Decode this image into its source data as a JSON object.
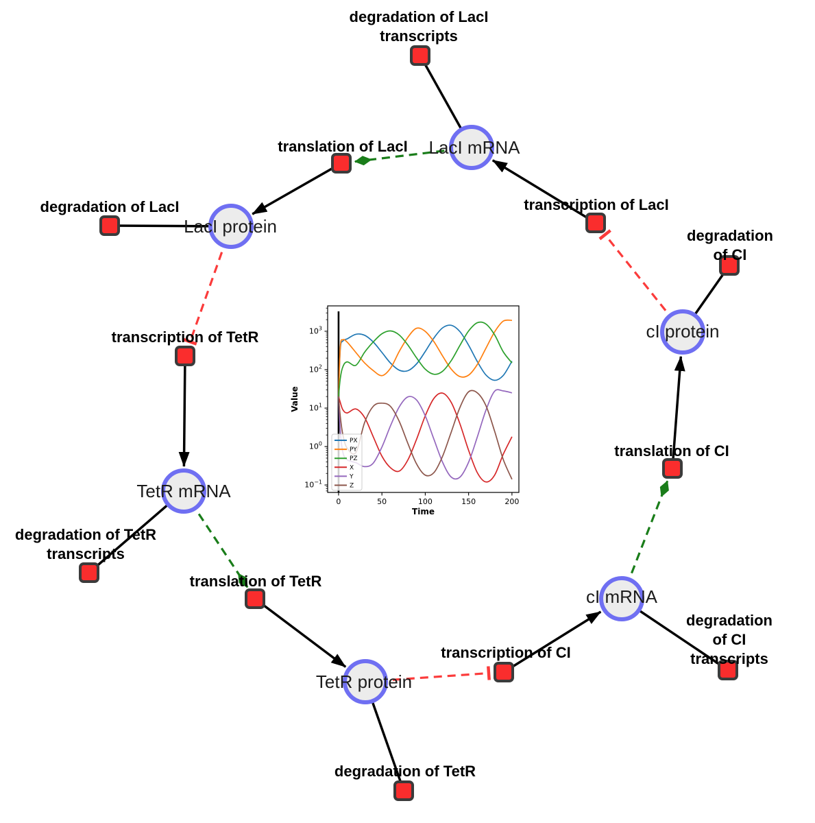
{
  "diagram": {
    "species": [
      {
        "id": "laci-mrna",
        "label": "LacI mRNA"
      },
      {
        "id": "laci-protein",
        "label": "LacI protein"
      },
      {
        "id": "tetr-mrna",
        "label": "TetR mRNA"
      },
      {
        "id": "tetr-protein",
        "label": "TetR protein"
      },
      {
        "id": "ci-mrna",
        "label": "cI mRNA"
      },
      {
        "id": "ci-protein",
        "label": "cI protein"
      }
    ],
    "reactions": [
      {
        "id": "deg-laci-transcripts",
        "label": "degradation of LacI\ntranscripts"
      },
      {
        "id": "translation-laci",
        "label": "translation of LacI"
      },
      {
        "id": "transcription-laci",
        "label": "transcription of LacI"
      },
      {
        "id": "deg-laci",
        "label": "degradation of LacI"
      },
      {
        "id": "transcription-tetr",
        "label": "transcription of TetR"
      },
      {
        "id": "deg-tetr-transcripts",
        "label": "degradation of TetR\ntranscripts"
      },
      {
        "id": "translation-tetr",
        "label": "translation of TetR"
      },
      {
        "id": "deg-tetr",
        "label": "degradation of TetR"
      },
      {
        "id": "transcription-ci",
        "label": "transcription of CI"
      },
      {
        "id": "deg-ci-transcripts",
        "label": "degradation of CI\ntranscripts"
      },
      {
        "id": "translation-ci",
        "label": "translation of CI"
      },
      {
        "id": "deg-ci",
        "label": "degradation of CI"
      }
    ],
    "colors": {
      "species_fill": "#ececec",
      "species_stroke": "#6f6ff2",
      "reaction_fill": "#fa2d2d",
      "reaction_stroke": "#3b3b3b",
      "edge": "#000000",
      "activation": "#1a7d1a",
      "inhibition": "#fb3b3b"
    }
  },
  "chart_data": {
    "type": "line",
    "title": "",
    "xlabel": "Time",
    "ylabel": "Value",
    "yscale": "log",
    "grid": false,
    "legend_position": "lower left",
    "xlim": [
      -12.6,
      208
    ],
    "ylim": [
      0.064,
      4570
    ],
    "xticks": [
      0,
      50,
      100,
      150,
      200
    ],
    "ytick_exponents": [
      -1,
      0,
      1,
      2,
      3
    ],
    "marker_line_x": 0,
    "x": [
      0,
      2,
      5,
      10,
      20,
      30,
      40,
      50,
      60,
      70,
      80,
      90,
      100,
      110,
      120,
      130,
      140,
      150,
      160,
      170,
      180,
      190,
      200
    ],
    "series": [
      {
        "name": "PX",
        "color": "#1f77b4",
        "values": [
          20,
          350,
          560,
          635,
          834,
          787,
          527,
          281,
          148,
          97,
          94,
          142,
          297,
          671,
          1225,
          1429,
          977,
          434,
          163,
          73,
          53,
          71,
          167
        ]
      },
      {
        "name": "PY",
        "color": "#ff7f0e",
        "values": [
          20,
          400,
          600,
          520,
          280,
          150,
          95,
          70,
          110,
          300,
          700,
          1197,
          990,
          533,
          227,
          103,
          66,
          72,
          136,
          361,
          964,
          1832,
          1924
        ]
      },
      {
        "name": "PZ",
        "color": "#2ca02c",
        "values": [
          20,
          60,
          120,
          160,
          130,
          284,
          527,
          861,
          1019,
          798,
          437,
          202,
          103,
          76,
          91,
          173,
          429,
          1014,
          1660,
          1542,
          808,
          291,
          150
        ]
      },
      {
        "name": "X",
        "color": "#d62728",
        "values": [
          20,
          14,
          9,
          7.5,
          9.5,
          5.7,
          1.8,
          0.56,
          0.28,
          0.23,
          0.45,
          1.56,
          6.3,
          18,
          24.6,
          14,
          3.9,
          0.8,
          0.21,
          0.12,
          0.18,
          0.63,
          1.8
        ]
      },
      {
        "name": "Y",
        "color": "#9467bd",
        "values": [
          20,
          2.5,
          0.7,
          0.45,
          0.38,
          0.3,
          0.37,
          0.97,
          3.5,
          10.8,
          19.6,
          16.2,
          6.3,
          1.54,
          0.39,
          0.16,
          0.16,
          0.39,
          1.76,
          8.8,
          27.6,
          28,
          25
        ]
      },
      {
        "name": "Z",
        "color": "#8c564b",
        "values": [
          20,
          6,
          2,
          0.9,
          0.7,
          4.2,
          11.1,
          13.5,
          11,
          4.5,
          1.2,
          0.35,
          0.18,
          0.21,
          0.56,
          2.4,
          10.4,
          26.5,
          25,
          11.6,
          2.5,
          0.46,
          0.14
        ]
      }
    ]
  }
}
